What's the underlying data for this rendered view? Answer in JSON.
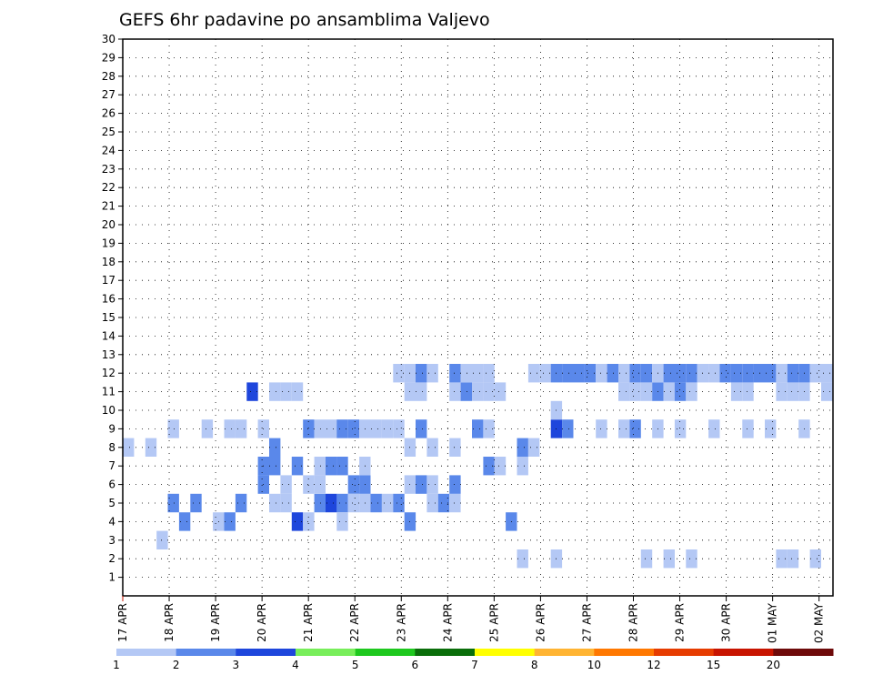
{
  "chart_data": {
    "type": "heatmap",
    "title": "GEFS 6hr padavine po ansamblima Valjevo",
    "y_ticks": [
      "1",
      "2",
      "3",
      "4",
      "5",
      "6",
      "7",
      "8",
      "9",
      "10",
      "11",
      "12",
      "13",
      "14",
      "15",
      "16",
      "17",
      "18",
      "19",
      "20",
      "21",
      "22",
      "23",
      "24",
      "25",
      "26",
      "27",
      "28",
      "29",
      "30"
    ],
    "x_ticks": [
      "17 APR",
      "18 APR",
      "19 APR",
      "20 APR",
      "21 APR",
      "22 APR",
      "23 APR",
      "24 APR",
      "25 APR",
      "26 APR",
      "27 APR",
      "28 APR",
      "29 APR",
      "30 APR",
      "01 MAY",
      "02 MAY"
    ],
    "x_steps": 60,
    "y_range": [
      0,
      30
    ],
    "grid": true,
    "colorbar": {
      "labels": [
        "1",
        "2",
        "3",
        "4",
        "5",
        "6",
        "7",
        "8",
        "10",
        "12",
        "15",
        "20"
      ],
      "colors": [
        "#b4c8f5",
        "#5a88ea",
        "#1e46dc",
        "#78ee5a",
        "#1ec81e",
        "#0a6e0a",
        "#ffff00",
        "#ffb432",
        "#ff7800",
        "#e63c00",
        "#c81400",
        "#6e0a0a"
      ]
    },
    "cells": [
      [
        35,
        1,
        0
      ],
      [
        38,
        1,
        0
      ],
      [
        46,
        1,
        0
      ],
      [
        48,
        1,
        0
      ],
      [
        50,
        1,
        0
      ],
      [
        58,
        1,
        0
      ],
      [
        59,
        1,
        0
      ],
      [
        61,
        1,
        0
      ],
      [
        3,
        2,
        0
      ],
      [
        8,
        3,
        0
      ],
      [
        9,
        3,
        1
      ],
      [
        10,
        4,
        1
      ],
      [
        13,
        4,
        0
      ],
      [
        15,
        3,
        2
      ],
      [
        18,
        4,
        2
      ],
      [
        21,
        4,
        0
      ],
      [
        25,
        3,
        1
      ],
      [
        4,
        4,
        1
      ],
      [
        5,
        3,
        1
      ],
      [
        6,
        4,
        1
      ],
      [
        12,
        5,
        1
      ],
      [
        12,
        6,
        1
      ],
      [
        13,
        6,
        1
      ],
      [
        14,
        5,
        0
      ],
      [
        14,
        4,
        0
      ],
      [
        15,
        6,
        1
      ],
      [
        16,
        5,
        0
      ],
      [
        16,
        3,
        0
      ],
      [
        17,
        4,
        1
      ],
      [
        17,
        5,
        0
      ],
      [
        17,
        6,
        0
      ],
      [
        18,
        6,
        1
      ],
      [
        19,
        4,
        1
      ],
      [
        19,
        3,
        0
      ],
      [
        19,
        6,
        1
      ],
      [
        20,
        5,
        1
      ],
      [
        20,
        4,
        0
      ],
      [
        21,
        5,
        1
      ],
      [
        21,
        6,
        0
      ],
      [
        22,
        4,
        1
      ],
      [
        23,
        4,
        0
      ],
      [
        24,
        4,
        1
      ],
      [
        25,
        5,
        0
      ],
      [
        26,
        5,
        1
      ],
      [
        27,
        4,
        0
      ],
      [
        27,
        5,
        0
      ],
      [
        28,
        4,
        1
      ],
      [
        29,
        4,
        0
      ],
      [
        29,
        5,
        1
      ],
      [
        32,
        6,
        1
      ],
      [
        33,
        6,
        0
      ],
      [
        34,
        3,
        1
      ],
      [
        35,
        6,
        0
      ],
      [
        0,
        7,
        0
      ],
      [
        2,
        7,
        0
      ],
      [
        4,
        8,
        0
      ],
      [
        7,
        8,
        0
      ],
      [
        9,
        8,
        0
      ],
      [
        10,
        8,
        0
      ],
      [
        12,
        8,
        0
      ],
      [
        13,
        7,
        1
      ],
      [
        16,
        8,
        1
      ],
      [
        17,
        8,
        0
      ],
      [
        18,
        8,
        0
      ],
      [
        19,
        8,
        1
      ],
      [
        20,
        8,
        1
      ],
      [
        21,
        8,
        0
      ],
      [
        22,
        8,
        0
      ],
      [
        23,
        8,
        0
      ],
      [
        24,
        8,
        0
      ],
      [
        25,
        7,
        0
      ],
      [
        26,
        8,
        1
      ],
      [
        27,
        7,
        0
      ],
      [
        29,
        7,
        0
      ],
      [
        31,
        8,
        1
      ],
      [
        32,
        8,
        0
      ],
      [
        35,
        7,
        1
      ],
      [
        36,
        7,
        0
      ],
      [
        38,
        8,
        2
      ],
      [
        39,
        8,
        1
      ],
      [
        42,
        8,
        0
      ],
      [
        44,
        8,
        0
      ],
      [
        45,
        8,
        1
      ],
      [
        47,
        8,
        0
      ],
      [
        49,
        8,
        0
      ],
      [
        52,
        8,
        0
      ],
      [
        55,
        8,
        0
      ],
      [
        57,
        8,
        0
      ],
      [
        60,
        8,
        0
      ],
      [
        11,
        10,
        2
      ],
      [
        13,
        10,
        0
      ],
      [
        14,
        10,
        0
      ],
      [
        15,
        10,
        0
      ],
      [
        25,
        10,
        0
      ],
      [
        26,
        10,
        0
      ],
      [
        29,
        10,
        0
      ],
      [
        30,
        10,
        1
      ],
      [
        31,
        10,
        0
      ],
      [
        32,
        10,
        0
      ],
      [
        33,
        10,
        0
      ],
      [
        38,
        9,
        0
      ],
      [
        44,
        10,
        0
      ],
      [
        45,
        10,
        0
      ],
      [
        46,
        10,
        0
      ],
      [
        47,
        10,
        1
      ],
      [
        48,
        10,
        0
      ],
      [
        49,
        10,
        1
      ],
      [
        50,
        10,
        0
      ],
      [
        54,
        10,
        0
      ],
      [
        55,
        10,
        0
      ],
      [
        58,
        10,
        0
      ],
      [
        59,
        10,
        0
      ],
      [
        60,
        10,
        0
      ],
      [
        62,
        10,
        0
      ],
      [
        24,
        11,
        0
      ],
      [
        25,
        11,
        0
      ],
      [
        26,
        11,
        1
      ],
      [
        27,
        11,
        0
      ],
      [
        29,
        11,
        1
      ],
      [
        30,
        11,
        0
      ],
      [
        31,
        11,
        0
      ],
      [
        32,
        11,
        0
      ],
      [
        36,
        11,
        0
      ],
      [
        37,
        11,
        0
      ],
      [
        38,
        11,
        1
      ],
      [
        39,
        11,
        1
      ],
      [
        40,
        11,
        1
      ],
      [
        41,
        11,
        1
      ],
      [
        42,
        11,
        0
      ],
      [
        43,
        11,
        1
      ],
      [
        44,
        11,
        0
      ],
      [
        45,
        11,
        1
      ],
      [
        46,
        11,
        1
      ],
      [
        47,
        11,
        0
      ],
      [
        48,
        11,
        1
      ],
      [
        49,
        11,
        1
      ],
      [
        50,
        11,
        1
      ],
      [
        51,
        11,
        0
      ],
      [
        52,
        11,
        0
      ],
      [
        53,
        11,
        1
      ],
      [
        54,
        11,
        1
      ],
      [
        55,
        11,
        1
      ],
      [
        56,
        11,
        1
      ],
      [
        57,
        11,
        1
      ],
      [
        58,
        11,
        0
      ],
      [
        59,
        11,
        1
      ],
      [
        60,
        11,
        1
      ],
      [
        61,
        11,
        0
      ],
      [
        62,
        11,
        0
      ]
    ]
  }
}
